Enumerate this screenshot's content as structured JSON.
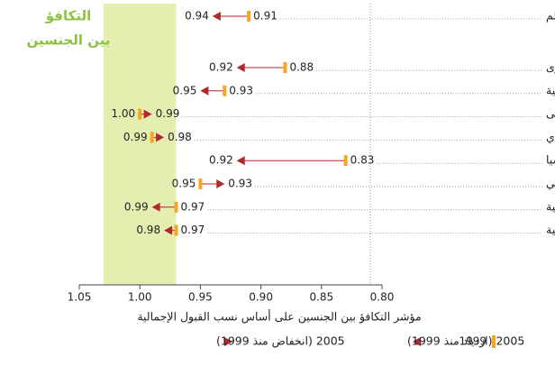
{
  "chart_data": {
    "type": "arrow-dot",
    "parity_label": [
      "التكافؤ",
      "بين الجنسين"
    ],
    "parity_band": [
      0.97,
      1.03
    ],
    "band_color": "#e5eeb1",
    "parity_color": "#8cc23f",
    "categories": [
      "العالم",
      "أفريقيا جنوب الصحراء الكبرى",
      "الدول العربية",
      "آسيا الوسطى",
      "شرق آسيا والمحيط الهادي",
      "جنوب وغرب آسيا",
      "أمريكا اللاتينية والكاريبي",
      "أمريكا الشمالية وأوروبا الغربية",
      "أوروبا الوسطى والشرقية"
    ],
    "series": [
      {
        "name": "1999",
        "color": "#f5a623",
        "values": [
          0.91,
          0.88,
          0.93,
          1.0,
          0.99,
          0.83,
          0.95,
          0.97,
          0.97
        ],
        "value_labels": [
          "0.91",
          "0.88",
          "0.93",
          "1.00",
          "0.99",
          "0.83",
          "0.95",
          "0.97",
          "0.97"
        ]
      },
      {
        "name": "2005 (ازدياد منذ 1999)",
        "decrease_name": "2005 (انخفاض منذ 1999)",
        "color": "#b3262c",
        "values": [
          0.94,
          0.92,
          0.95,
          0.99,
          0.98,
          0.92,
          0.93,
          0.99,
          0.98
        ],
        "value_labels": [
          "0.94",
          "0.92",
          "0.95",
          "0.99",
          "0.98",
          "0.92",
          "0.93",
          "0.99",
          "0.98"
        ]
      }
    ],
    "xlabel": "مؤشر التكافؤ بين الجنسين على أساس نسب القبول الإجمالية",
    "xlim": [
      1.05,
      0.8
    ],
    "xticks": [
      {
        "value": 1.05,
        "label": "1.05"
      },
      {
        "value": 1,
        "label": "1.00"
      },
      {
        "value": 0.95,
        "label": "0.95"
      },
      {
        "value": 0.9,
        "label": "0.90"
      },
      {
        "value": 0.85,
        "label": "0.85"
      },
      {
        "value": 0.8,
        "label": "0.80"
      }
    ]
  }
}
